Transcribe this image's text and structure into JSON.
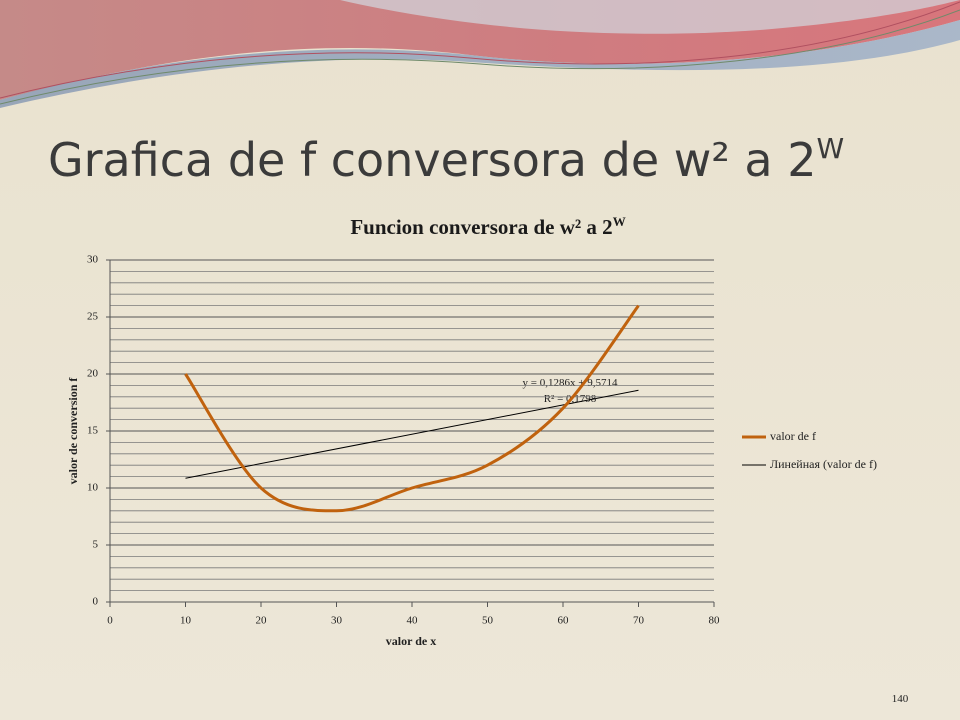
{
  "slide": {
    "title": "Grafica de f conversora de w² a 2",
    "title_sup": "W",
    "page_number": "140"
  },
  "chart_data": {
    "type": "line",
    "smooth": true,
    "title": "Funcion conversora de w² a 2",
    "title_sup": "W",
    "x_label": "valor de x",
    "y_label": "valor de conversion f",
    "x": [
      10,
      20,
      30,
      40,
      50,
      60,
      70
    ],
    "series": [
      {
        "name": "valor de f",
        "color": "#c0620e",
        "values": [
          20,
          10,
          8,
          10,
          12,
          17,
          26
        ]
      }
    ],
    "trendline": {
      "name": "Линейная (valor de f)",
      "color": "#000000",
      "slope": 0.1286,
      "intercept": 9.5714,
      "equation": "y = 0,1286x + 9,5714",
      "r2_label": "R² = 0,1798"
    },
    "xlim": [
      0,
      80
    ],
    "xticks": [
      0,
      10,
      20,
      30,
      40,
      50,
      60,
      70,
      80
    ],
    "ylim": [
      0,
      30
    ],
    "yticks": [
      0,
      5,
      10,
      15,
      20,
      25,
      30
    ],
    "minor_grid_step": 1,
    "grid": true,
    "legend": "right"
  }
}
